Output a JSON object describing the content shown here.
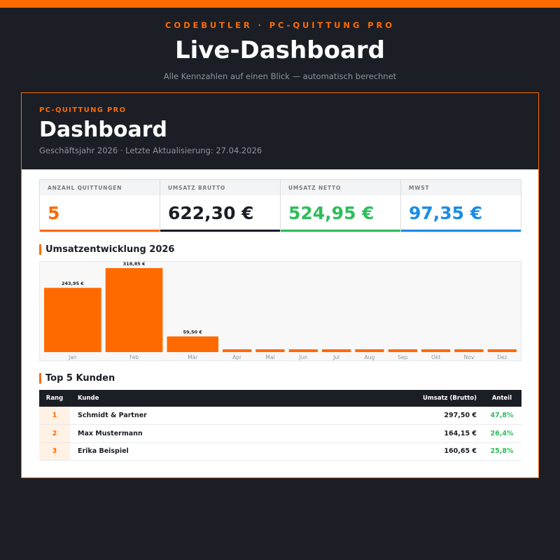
{
  "header": {
    "brand": "CODEBUTLER · PC-QUITTUNG PRO",
    "title": "Live-Dashboard",
    "subtitle": "Alle Kennzahlen auf einen Blick — automatisch berechnet"
  },
  "dashboard": {
    "kicker": "PC-QUITTUNG PRO",
    "title": "Dashboard",
    "subtitle": "Geschäftsjahr 2026 · Letzte Aktualisierung: 27.04.2026"
  },
  "kpis": [
    {
      "label": "ANZAHL QUITTUNGEN",
      "value": "5",
      "color": "#ff6a00"
    },
    {
      "label": "UMSATZ BRUTTO",
      "value": "622,30 €",
      "color": "#1b1e25"
    },
    {
      "label": "UMSATZ NETTO",
      "value": "524,95 €",
      "color": "#2dbd5b"
    },
    {
      "label": "MWST",
      "value": "97,35 €",
      "color": "#1a8ce6"
    }
  ],
  "chart_title": "Umsatzentwicklung 2026",
  "chart_data": {
    "type": "bar",
    "categories": [
      "Jan",
      "Feb",
      "Mär",
      "Apr",
      "Mai",
      "Jun",
      "Jul",
      "Aug",
      "Sep",
      "Okt",
      "Nov",
      "Dez"
    ],
    "values": [
      243.95,
      318.85,
      59.5,
      0,
      0,
      0,
      0,
      0,
      0,
      0,
      0,
      0
    ],
    "data_labels": [
      "243,95 €",
      "318,85 €",
      "59,50 €",
      "",
      "",
      "",
      "",
      "",
      "",
      "",
      "",
      ""
    ],
    "bar_color": "#ff6a00",
    "grid": false
  },
  "customers_title": "Top 5 Kunden",
  "customers": {
    "columns": [
      "Rang",
      "Kunde",
      "Umsatz (Brutto)",
      "Anteil"
    ],
    "rows": [
      {
        "rank": "1",
        "name": "Schmidt & Partner",
        "sum": "297,50 €",
        "share": "47,8%"
      },
      {
        "rank": "2",
        "name": "Max Mustermann",
        "sum": "164,15 €",
        "share": "26,4%"
      },
      {
        "rank": "3",
        "name": "Erika Beispiel",
        "sum": "160,65 €",
        "share": "25,8%"
      }
    ]
  },
  "colors": {
    "accent": "#ff6a00",
    "background": "#1b1e25",
    "positive": "#2dbd5b",
    "info": "#1a8ce6"
  }
}
